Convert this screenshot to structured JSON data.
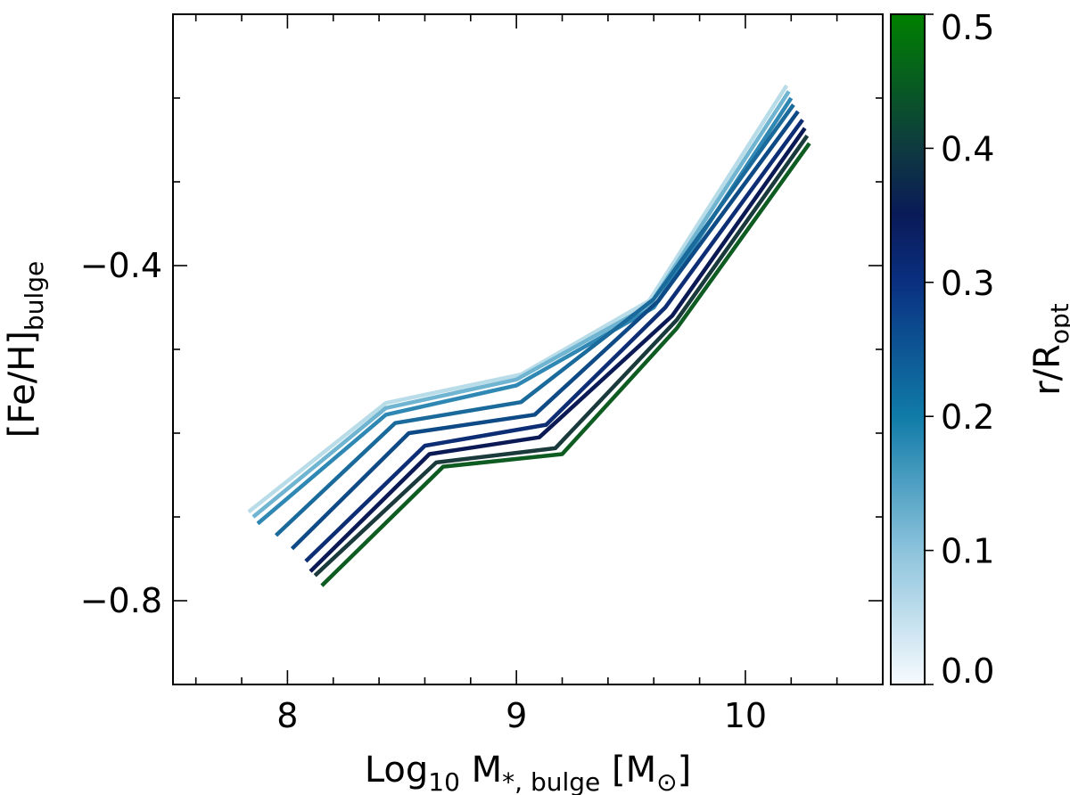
{
  "chart_data": {
    "type": "line",
    "xlabel": {
      "main": "Log",
      "sub": "10",
      "mid": " M",
      "sub2": "*, bulge",
      "tail": " [M",
      "sub3": "⊙",
      "end": "]"
    },
    "ylabel": {
      "main": "[Fe/H]",
      "sub": "bulge"
    },
    "xlim": [
      7.5,
      10.6
    ],
    "ylim": [
      -0.9,
      -0.1
    ],
    "xticks": [
      8,
      9,
      10
    ],
    "xtick_labels": [
      "8",
      "9",
      "10"
    ],
    "xminor_step": 0.2,
    "yticks": [
      -0.4,
      -0.8
    ],
    "ytick_labels": [
      "−0.4",
      "−0.8"
    ],
    "yminor_step": 0.1,
    "series": [
      {
        "r": 0.0,
        "color": "#b9dce9",
        "x": [
          7.83,
          8.43,
          9.02,
          9.58,
          10.18
        ],
        "y": [
          -0.694,
          -0.564,
          -0.53,
          -0.442,
          -0.185
        ]
      },
      {
        "r": 0.05,
        "color": "#6fb4d0",
        "x": [
          7.85,
          8.43,
          9.0,
          9.58,
          10.19
        ],
        "y": [
          -0.7,
          -0.57,
          -0.536,
          -0.448,
          -0.192
        ]
      },
      {
        "r": 0.1,
        "color": "#2f88b3",
        "x": [
          7.87,
          8.43,
          9.0,
          9.6,
          10.2
        ],
        "y": [
          -0.708,
          -0.578,
          -0.543,
          -0.45,
          -0.2
        ]
      },
      {
        "r": 0.15,
        "color": "#1b6a9c",
        "x": [
          7.95,
          8.47,
          9.02,
          9.6,
          10.21
        ],
        "y": [
          -0.722,
          -0.588,
          -0.563,
          -0.44,
          -0.208
        ]
      },
      {
        "r": 0.2,
        "color": "#0e4a86",
        "x": [
          8.02,
          8.53,
          9.08,
          9.62,
          10.23
        ],
        "y": [
          -0.738,
          -0.6,
          -0.578,
          -0.442,
          -0.216
        ]
      },
      {
        "r": 0.25,
        "color": "#0d2d75",
        "x": [
          8.08,
          8.6,
          9.13,
          9.65,
          10.25
        ],
        "y": [
          -0.753,
          -0.615,
          -0.59,
          -0.45,
          -0.226
        ]
      },
      {
        "r": 0.3,
        "color": "#0b1a55",
        "x": [
          8.1,
          8.62,
          9.1,
          9.68,
          10.26
        ],
        "y": [
          -0.765,
          -0.625,
          -0.605,
          -0.46,
          -0.236
        ]
      },
      {
        "r": 0.35,
        "color": "#1a3a3c",
        "x": [
          8.12,
          8.65,
          9.17,
          9.7,
          10.27
        ],
        "y": [
          -0.77,
          -0.635,
          -0.618,
          -0.465,
          -0.245
        ]
      },
      {
        "r": 0.45,
        "color": "#0e5c22",
        "x": [
          8.15,
          8.68,
          9.2,
          9.7,
          10.28
        ],
        "y": [
          -0.782,
          -0.64,
          -0.625,
          -0.475,
          -0.254
        ]
      }
    ],
    "colorbar": {
      "label_main": "r/R",
      "label_sub": "opt",
      "range": [
        0.0,
        0.5
      ],
      "ticks": [
        0.0,
        0.1,
        0.2,
        0.3,
        0.4,
        0.5
      ],
      "tick_labels": [
        "0.0",
        "0.1",
        "0.2",
        "0.3",
        "0.4",
        "0.5"
      ],
      "stops": [
        {
          "v": 0.0,
          "color": "#f7fbff"
        },
        {
          "v": 0.1,
          "color": "#8cc3dc"
        },
        {
          "v": 0.2,
          "color": "#107ba8"
        },
        {
          "v": 0.3,
          "color": "#0a3080"
        },
        {
          "v": 0.35,
          "color": "#0a1a58"
        },
        {
          "v": 0.4,
          "color": "#0e3a40"
        },
        {
          "v": 0.5,
          "color": "#008000"
        }
      ]
    }
  }
}
